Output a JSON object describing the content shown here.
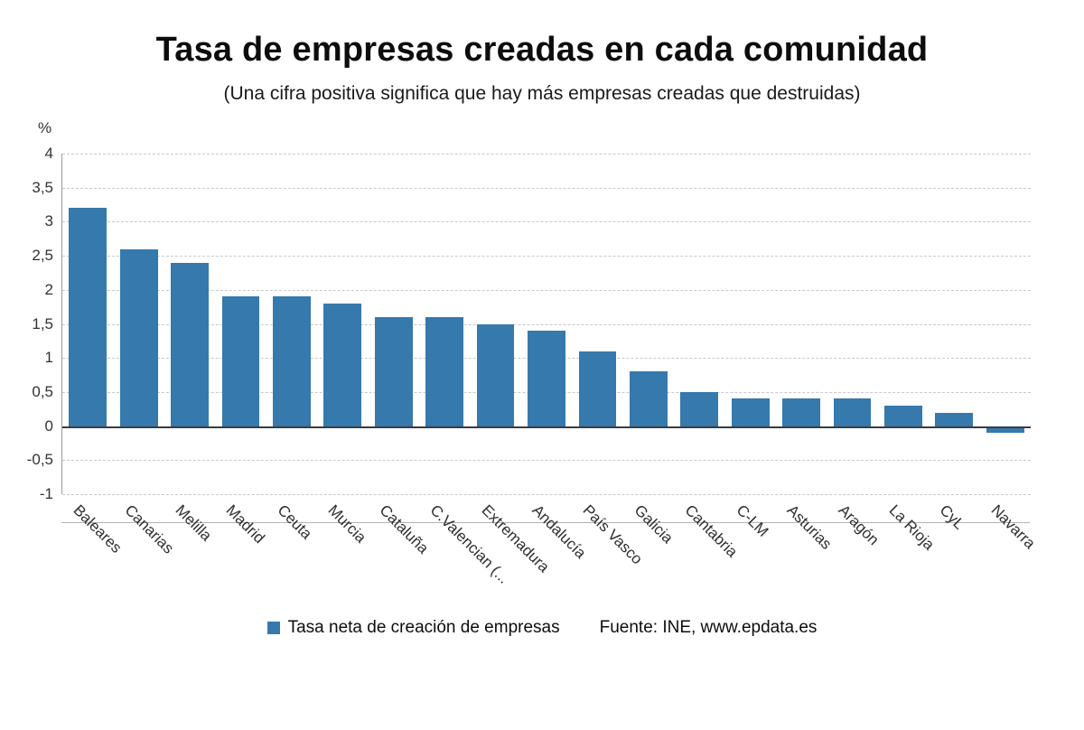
{
  "header": {
    "title": "Tasa de empresas creadas en cada comunidad",
    "subtitle": "(Una cifra positiva significa que hay más empresas creadas que destruidas)"
  },
  "chart_data": {
    "type": "bar",
    "unit_label": "%",
    "title": "Tasa de empresas creadas en cada comunidad",
    "subtitle": "(Una cifra positiva significa que hay más empresas creadas que destruidas)",
    "categories": [
      "Baleares",
      "Canarias",
      "Melilla",
      "Madrid",
      "Ceuta",
      "Murcia",
      "Cataluña",
      "C.Valencian (...",
      "Extremadura",
      "Andalucía",
      "País Vasco",
      "Galicia",
      "Cantabria",
      "C-LM",
      "Asturias",
      "Aragón",
      "La Rioja",
      "CyL",
      "Navarra"
    ],
    "series": [
      {
        "name": "Tasa neta de creación de empresas",
        "values": [
          3.2,
          2.6,
          2.4,
          1.9,
          1.9,
          1.8,
          1.6,
          1.6,
          1.5,
          1.4,
          1.1,
          0.8,
          0.5,
          0.4,
          0.4,
          0.4,
          0.3,
          0.2,
          -0.1
        ]
      }
    ],
    "ylim": [
      -1,
      4
    ],
    "yticks": [
      {
        "value": 4,
        "label": "4"
      },
      {
        "value": 3.5,
        "label": "3,5"
      },
      {
        "value": 3,
        "label": "3"
      },
      {
        "value": 2.5,
        "label": "2,5"
      },
      {
        "value": 2,
        "label": "2"
      },
      {
        "value": 1.5,
        "label": "1,5"
      },
      {
        "value": 1,
        "label": "1"
      },
      {
        "value": 0.5,
        "label": "0,5"
      },
      {
        "value": 0,
        "label": "0"
      },
      {
        "value": -0.5,
        "label": "-0,5"
      },
      {
        "value": -1,
        "label": "-1"
      }
    ],
    "bar_color": "#3579ad",
    "grid": true,
    "legend_position": "bottom"
  },
  "footer": {
    "legend_label": "Tasa neta de creación de empresas",
    "source": "Fuente: INE, www.epdata.es"
  }
}
